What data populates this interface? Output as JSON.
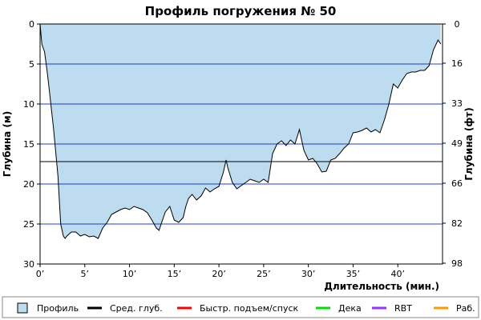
{
  "chart_data": {
    "type": "area",
    "title": "Профиль погружения № 50",
    "xlabel": "Длительность (мин.)",
    "ylabel_left": "Глубина (м)",
    "ylabel_right": "Глубина (фт)",
    "xlim": [
      0,
      45
    ],
    "ylim": [
      30,
      0
    ],
    "y_inverted": true,
    "grid": true,
    "x_ticks": [
      0,
      5,
      10,
      15,
      20,
      25,
      30,
      35,
      40
    ],
    "x_tick_labels": [
      "0’",
      "5’",
      "10’",
      "15’",
      "20’",
      "25’",
      "30’",
      "35’",
      "40’"
    ],
    "y_ticks_left": [
      0,
      5,
      10,
      15,
      20,
      25,
      30
    ],
    "y_tick_labels_left": [
      "0",
      "5",
      "10",
      "15",
      "20",
      "25",
      "30"
    ],
    "y_ticks_right_m": [
      0,
      4.9,
      9.9,
      14.9,
      19.9,
      24.9,
      29.9
    ],
    "y_tick_labels_right": [
      "0",
      "16",
      "33",
      "49",
      "66",
      "82",
      "98"
    ],
    "avg_depth": 17.2,
    "profile": {
      "name": "Профиль",
      "fill_color": "#bddcef",
      "line_color": "#000000",
      "x": [
        0,
        0.2,
        0.5,
        0.8,
        1.0,
        1.5,
        2.0,
        2.3,
        2.6,
        2.8,
        3.0,
        3.5,
        4.0,
        4.5,
        5.0,
        5.5,
        6.0,
        6.5,
        7.0,
        7.5,
        8.0,
        8.5,
        9.0,
        9.5,
        10.0,
        10.5,
        11.0,
        11.5,
        12.0,
        12.5,
        13.0,
        13.3,
        13.6,
        14.0,
        14.5,
        15.0,
        15.5,
        16.0,
        16.3,
        16.6,
        17.0,
        17.5,
        18.0,
        18.5,
        19.0,
        19.5,
        20.0,
        20.5,
        20.8,
        21.0,
        21.5,
        22.0,
        22.5,
        23.0,
        23.5,
        24.0,
        24.5,
        25.0,
        25.5,
        26.0,
        26.5,
        27.0,
        27.5,
        28.0,
        28.5,
        29.0,
        29.5,
        30.0,
        30.5,
        31.0,
        31.5,
        32.0,
        32.5,
        33.0,
        33.5,
        34.0,
        34.5,
        35.0,
        35.5,
        36.0,
        36.5,
        37.0,
        37.5,
        38.0,
        38.5,
        39.0,
        39.5,
        40.0,
        40.5,
        41.0,
        41.5,
        42.0,
        42.5,
        43.0,
        43.5,
        44.0,
        44.5,
        44.8
      ],
      "depth": [
        0,
        2.5,
        3.5,
        6.0,
        8.0,
        13.0,
        19.0,
        25.0,
        26.5,
        26.8,
        26.5,
        26.0,
        26.0,
        26.5,
        26.3,
        26.6,
        26.5,
        26.8,
        25.5,
        24.8,
        23.8,
        23.5,
        23.2,
        23.0,
        23.2,
        22.8,
        23.0,
        23.2,
        23.6,
        24.5,
        25.5,
        25.8,
        24.8,
        23.5,
        22.8,
        24.5,
        24.8,
        24.2,
        22.8,
        21.8,
        21.3,
        22.0,
        21.5,
        20.5,
        21.0,
        20.6,
        20.3,
        18.5,
        17.0,
        18.0,
        19.8,
        20.6,
        20.2,
        19.8,
        19.4,
        19.6,
        19.8,
        19.4,
        19.8,
        16.2,
        15.0,
        14.6,
        15.2,
        14.5,
        15.0,
        13.2,
        15.8,
        17.0,
        16.8,
        17.5,
        18.5,
        18.4,
        17.0,
        16.8,
        16.2,
        15.5,
        15.0,
        13.6,
        13.5,
        13.3,
        13.0,
        13.5,
        13.2,
        13.6,
        12.0,
        10.0,
        7.5,
        8.0,
        7.0,
        6.2,
        6.0,
        6.0,
        5.8,
        5.8,
        5.2,
        3.2,
        2.0,
        2.5
      ]
    }
  },
  "legend": [
    {
      "label": "Профиль",
      "color": "#bddcef",
      "kind": "box"
    },
    {
      "label": "Сред. глуб.",
      "color": "#000000",
      "kind": "line"
    },
    {
      "label": "Быстр. подъем/спуск",
      "color": "#ff0000",
      "kind": "line"
    },
    {
      "label": "Дека",
      "color": "#00e000",
      "kind": "line"
    },
    {
      "label": "RBT",
      "color": "#9933ff",
      "kind": "line"
    },
    {
      "label": "Раб.",
      "color": "#ff9900",
      "kind": "line"
    }
  ],
  "colors": {
    "grid": "#1f3ccc",
    "avg_line": "#000000",
    "axis": "#000000",
    "legend_bg": "#ffffff"
  }
}
